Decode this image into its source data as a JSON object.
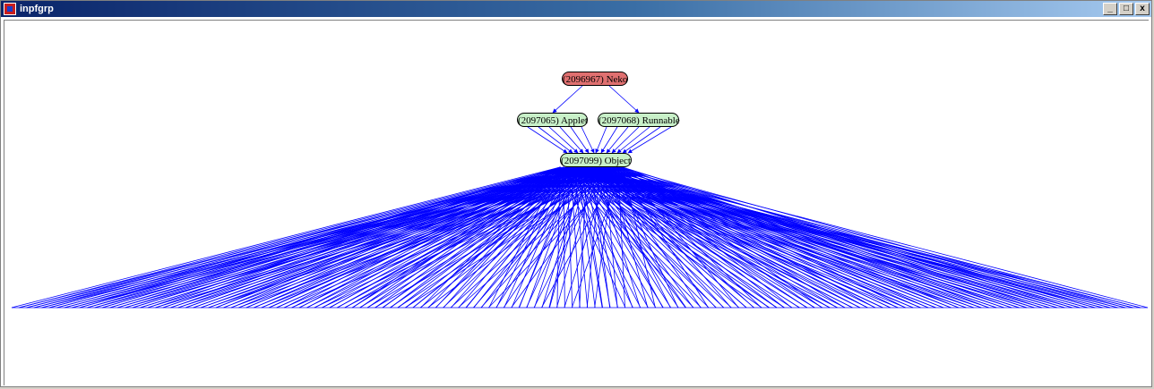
{
  "window": {
    "title": "inpfgrp",
    "controls": [
      "_",
      "□",
      "x"
    ]
  },
  "graph": {
    "colors": {
      "edge": "#0000ff",
      "root_fill": "#e07070",
      "node_fill": "#c8f0c8"
    },
    "nodes": {
      "neko": "(2096967) Neko",
      "applet": "(2097065) Applet",
      "runnable": "(2097068) Runnable",
      "object": "(2097099) Object"
    }
  }
}
